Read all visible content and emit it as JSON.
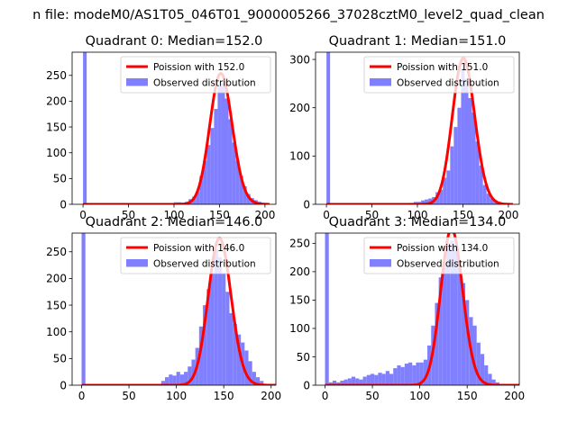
{
  "suptitle": "n file: modeM0/AS1T05_046T01_9000005266_37028cztM0_level2_quad_clean",
  "legend_labels": {
    "fit": "Poission with",
    "observed": "Observed distribution"
  },
  "colors": {
    "hist": "#8080ff",
    "fit": "#ff0000",
    "axis": "#000000"
  },
  "chart_data": [
    {
      "type": "bar",
      "title": "Quadrant 0: Median=152.0",
      "median": 152.0,
      "fit_label": "Poission with 152.0",
      "xlim": [
        -12,
        212
      ],
      "ylim": [
        0,
        295
      ],
      "xticks": [
        0,
        50,
        100,
        150,
        200
      ],
      "yticks": [
        0,
        50,
        100,
        150,
        200,
        250
      ],
      "bin_width": 4,
      "bins": [
        [
          0,
          295
        ],
        [
          96,
          2
        ],
        [
          100,
          4
        ],
        [
          104,
          4
        ],
        [
          108,
          3
        ],
        [
          112,
          5
        ],
        [
          116,
          10
        ],
        [
          120,
          15
        ],
        [
          124,
          25
        ],
        [
          128,
          55
        ],
        [
          132,
          85
        ],
        [
          136,
          115
        ],
        [
          140,
          148
        ],
        [
          144,
          185
        ],
        [
          148,
          230
        ],
        [
          152,
          235
        ],
        [
          156,
          205
        ],
        [
          160,
          165
        ],
        [
          164,
          120
        ],
        [
          168,
          85
        ],
        [
          172,
          55
        ],
        [
          176,
          35
        ],
        [
          180,
          20
        ],
        [
          184,
          12
        ],
        [
          188,
          8
        ],
        [
          192,
          5
        ],
        [
          196,
          3
        ]
      ]
    },
    {
      "type": "bar",
      "title": "Quadrant 1: Median=151.0",
      "median": 151.0,
      "fit_label": "Poission with 151.0",
      "xlim": [
        -12,
        212
      ],
      "ylim": [
        0,
        315
      ],
      "xticks": [
        0,
        50,
        100,
        150,
        200
      ],
      "yticks": [
        0,
        100,
        200,
        300
      ],
      "bin_width": 4,
      "bins": [
        [
          0,
          315
        ],
        [
          88,
          2
        ],
        [
          92,
          3
        ],
        [
          96,
          5
        ],
        [
          100,
          5
        ],
        [
          104,
          8
        ],
        [
          108,
          10
        ],
        [
          112,
          12
        ],
        [
          116,
          15
        ],
        [
          120,
          25
        ],
        [
          124,
          30
        ],
        [
          128,
          55
        ],
        [
          132,
          70
        ],
        [
          136,
          120
        ],
        [
          140,
          160
        ],
        [
          144,
          200
        ],
        [
          148,
          280
        ],
        [
          152,
          260
        ],
        [
          156,
          220
        ],
        [
          160,
          190
        ],
        [
          164,
          130
        ],
        [
          168,
          80
        ],
        [
          172,
          40
        ],
        [
          176,
          22
        ],
        [
          180,
          12
        ],
        [
          184,
          8
        ],
        [
          188,
          5
        ],
        [
          192,
          3
        ]
      ]
    },
    {
      "type": "bar",
      "title": "Quadrant 2: Median=146.0",
      "median": 146.0,
      "fit_label": "Poission with 146.0",
      "xlim": [
        -10,
        205
      ],
      "ylim": [
        0,
        285
      ],
      "xticks": [
        0,
        50,
        100,
        150,
        200
      ],
      "yticks": [
        0,
        50,
        100,
        150,
        200,
        250
      ],
      "bin_width": 4,
      "bins": [
        [
          0,
          285
        ],
        [
          84,
          8
        ],
        [
          88,
          15
        ],
        [
          92,
          20
        ],
        [
          96,
          18
        ],
        [
          100,
          25
        ],
        [
          104,
          20
        ],
        [
          108,
          25
        ],
        [
          112,
          35
        ],
        [
          116,
          48
        ],
        [
          120,
          70
        ],
        [
          124,
          110
        ],
        [
          128,
          150
        ],
        [
          132,
          180
        ],
        [
          136,
          210
        ],
        [
          140,
          255
        ],
        [
          144,
          240
        ],
        [
          148,
          210
        ],
        [
          152,
          175
        ],
        [
          156,
          135
        ],
        [
          160,
          115
        ],
        [
          164,
          95
        ],
        [
          168,
          80
        ],
        [
          172,
          65
        ],
        [
          176,
          45
        ],
        [
          180,
          25
        ],
        [
          184,
          15
        ],
        [
          188,
          8
        ]
      ]
    },
    {
      "type": "bar",
      "title": "Quadrant 3: Median=134.0",
      "median": 134.0,
      "fit_label": "Poission with 134.0",
      "xlim": [
        -10,
        205
      ],
      "ylim": [
        0,
        268
      ],
      "xticks": [
        0,
        50,
        100,
        150,
        200
      ],
      "yticks": [
        0,
        50,
        100,
        150,
        200,
        250
      ],
      "bin_width": 4,
      "bins": [
        [
          0,
          268
        ],
        [
          4,
          5
        ],
        [
          8,
          8
        ],
        [
          12,
          5
        ],
        [
          16,
          8
        ],
        [
          20,
          10
        ],
        [
          24,
          12
        ],
        [
          28,
          15
        ],
        [
          32,
          12
        ],
        [
          36,
          10
        ],
        [
          40,
          15
        ],
        [
          44,
          18
        ],
        [
          48,
          20
        ],
        [
          52,
          18
        ],
        [
          56,
          22
        ],
        [
          60,
          20
        ],
        [
          64,
          25
        ],
        [
          68,
          20
        ],
        [
          72,
          30
        ],
        [
          76,
          35
        ],
        [
          80,
          32
        ],
        [
          84,
          38
        ],
        [
          88,
          40
        ],
        [
          92,
          35
        ],
        [
          96,
          40
        ],
        [
          100,
          40
        ],
        [
          104,
          45
        ],
        [
          108,
          70
        ],
        [
          112,
          105
        ],
        [
          116,
          145
        ],
        [
          120,
          190
        ],
        [
          124,
          210
        ],
        [
          128,
          250
        ],
        [
          132,
          255
        ],
        [
          136,
          245
        ],
        [
          140,
          220
        ],
        [
          144,
          180
        ],
        [
          148,
          150
        ],
        [
          152,
          120
        ],
        [
          156,
          105
        ],
        [
          160,
          75
        ],
        [
          164,
          55
        ],
        [
          168,
          35
        ],
        [
          172,
          20
        ],
        [
          176,
          10
        ],
        [
          180,
          5
        ]
      ]
    }
  ]
}
